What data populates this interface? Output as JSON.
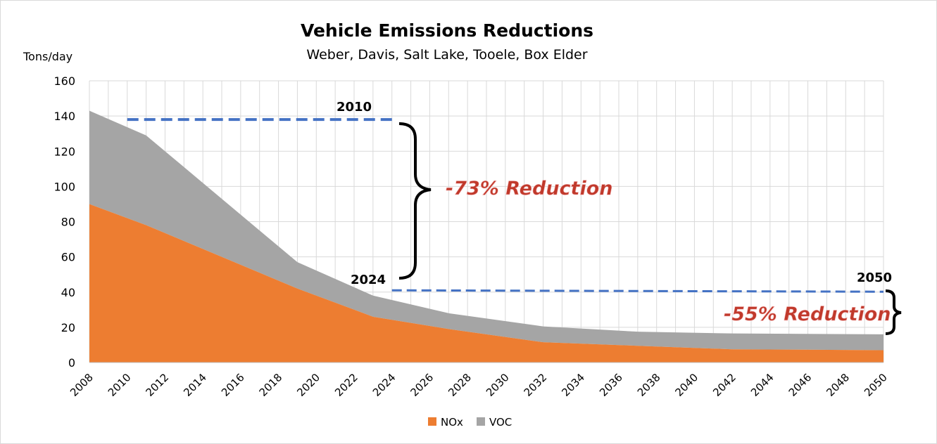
{
  "chart_data": {
    "type": "area",
    "stacked": true,
    "title": "Vehicle Emissions Reductions",
    "subtitle": "Weber, Davis, Salt Lake, Tooele, Box Elder",
    "ylabel": "Tons/day",
    "ylim": [
      0,
      160
    ],
    "yticks": [
      "0",
      "20",
      "40",
      "60",
      "80",
      "100",
      "120",
      "140",
      "160"
    ],
    "xlim": [
      2008,
      2050
    ],
    "xticks": [
      "2008",
      "2010",
      "2012",
      "2014",
      "2016",
      "2018",
      "2020",
      "2022",
      "2024",
      "2026",
      "2028",
      "2030",
      "2032",
      "2034",
      "2036",
      "2038",
      "2040",
      "2042",
      "2044",
      "2046",
      "2048",
      "2050"
    ],
    "grid": true,
    "legend_position": "bottom",
    "x": [
      2008,
      2011,
      2019,
      2023,
      2027,
      2032,
      2037,
      2042,
      2050
    ],
    "series": [
      {
        "name": "NOx",
        "color": "#ed7d31",
        "values": [
          90,
          78,
          42,
          26,
          19,
          11.5,
          9.5,
          7.5,
          7
        ]
      },
      {
        "name": "VOC",
        "color": "#a5a5a5",
        "values": [
          53,
          51,
          15,
          12,
          9,
          9,
          8,
          9,
          9
        ]
      }
    ],
    "annotations": {
      "ref_2010": {
        "label": "2010",
        "value": 138,
        "x_from": 2010,
        "x_to": 2023
      },
      "ref_2024": {
        "label": "2024",
        "value": 41,
        "x_from": 2024,
        "x_to": 2050
      },
      "label_2050": "2050",
      "reduction_1": "-73% Reduction",
      "reduction_2": "-55% Reduction",
      "line_color": "#4472c4"
    }
  }
}
